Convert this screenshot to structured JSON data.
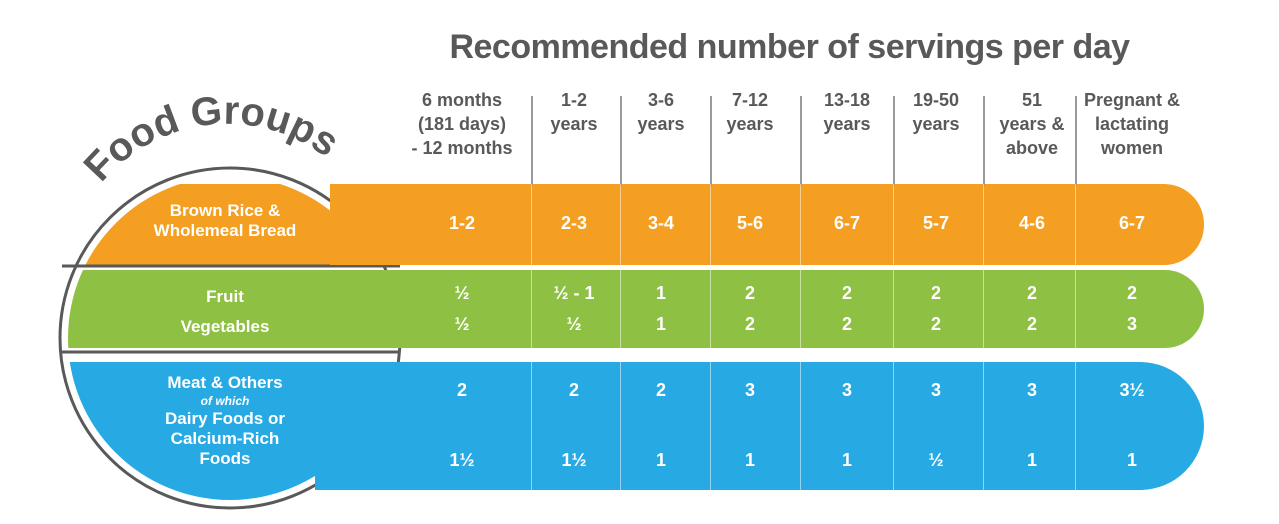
{
  "title": "Recommended number of servings per day",
  "food_groups_label": "Food Groups",
  "columns": [
    {
      "line1": "6 months",
      "line2": "(181 days)",
      "line3": "- 12 months"
    },
    {
      "line1": "1-2",
      "line2": "years",
      "line3": ""
    },
    {
      "line1": "3-6",
      "line2": "years",
      "line3": ""
    },
    {
      "line1": "7-12",
      "line2": "years",
      "line3": ""
    },
    {
      "line1": "13-18",
      "line2": "years",
      "line3": ""
    },
    {
      "line1": "19-50",
      "line2": "years",
      "line3": ""
    },
    {
      "line1": "51",
      "line2": "years &",
      "line3": "above"
    },
    {
      "line1": "Pregnant &",
      "line2": "lactating",
      "line3": "women"
    }
  ],
  "groups": {
    "grains": {
      "label_line1": "Brown Rice &",
      "label_line2": "Wholemeal Bread",
      "color": "#f49f22",
      "values": [
        "1-2",
        "2-3",
        "3-4",
        "5-6",
        "6-7",
        "5-7",
        "4-6",
        "6-7"
      ]
    },
    "fruit_veg": {
      "label_fruit": "Fruit",
      "label_veg": "Vegetables",
      "color": "#8dc043",
      "fruit_values": [
        "½",
        "½ - 1",
        "1",
        "2",
        "2",
        "2",
        "2",
        "2"
      ],
      "veg_values": [
        "½",
        "½",
        "1",
        "2",
        "2",
        "2",
        "2",
        "3"
      ]
    },
    "meat": {
      "label_line1": "Meat & Others",
      "label_of_which": "of which",
      "label_line2": "Dairy Foods or",
      "label_line3": "Calcium-Rich",
      "label_line4": "Foods",
      "color": "#27aae3",
      "meat_values": [
        "2",
        "2",
        "2",
        "3",
        "3",
        "3",
        "3",
        "3½"
      ],
      "dairy_values": [
        "1½",
        "1½",
        "1",
        "1",
        "1",
        "½",
        "1",
        "1"
      ]
    }
  }
}
